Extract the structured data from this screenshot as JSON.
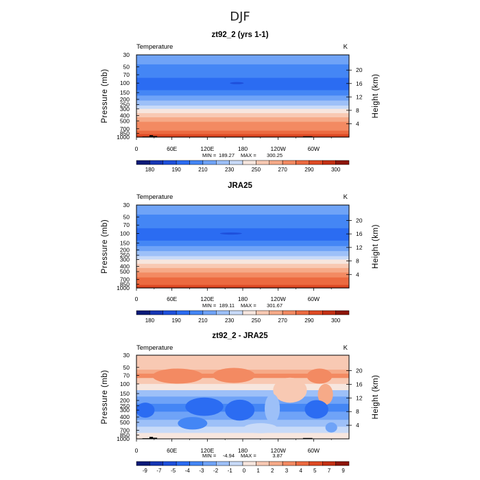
{
  "figure_title": "DJF",
  "colors": {
    "temperature_scale": [
      "#0a1a78",
      "#1636b4",
      "#1e50dc",
      "#2b6cf2",
      "#4486f5",
      "#6fa3f7",
      "#9dc0f8",
      "#c8daf8",
      "#f7e6de",
      "#f8c9b3",
      "#f6aa88",
      "#f38a62",
      "#ec6a40",
      "#de4a24",
      "#c43014",
      "#8e1608"
    ],
    "difference_scale": [
      "#0a1a78",
      "#1636b4",
      "#1e50dc",
      "#2b6cf2",
      "#4486f5",
      "#6fa3f7",
      "#9dc0f8",
      "#c8daf8",
      "#f7e6de",
      "#f8c9b3",
      "#f6aa88",
      "#f38a62",
      "#ec6a40",
      "#de4a24",
      "#c43014",
      "#8e1608"
    ],
    "topography": "#000000"
  },
  "chart_data": [
    {
      "type": "heatmap",
      "title": "zt92_2 (yrs 1-1)",
      "variable_label": "Temperature",
      "units_label": "K",
      "xlabel": "",
      "ylabel": "Pressure (mb)",
      "ylabel_right": "Height (km)",
      "x_ticks": [
        "0",
        "60E",
        "120E",
        "180",
        "120W",
        "60W"
      ],
      "y_ticks": [
        "30",
        "50",
        "70",
        "100",
        "150",
        "200",
        "250",
        "300",
        "400",
        "500",
        "700",
        "850",
        "1000"
      ],
      "y_ticks_right": [
        "20",
        "16",
        "12",
        "8",
        "4"
      ],
      "min_label": "MIN =",
      "min_value": "189.27",
      "max_label": "MAX =",
      "max_value": "300.25",
      "colorbar_labels": [
        "180",
        "190",
        "210",
        "230",
        "250",
        "270",
        "290",
        "300"
      ],
      "bands": [
        {
          "p_top": 30,
          "p_bot": 45,
          "value": 212
        },
        {
          "p_top": 45,
          "p_bot": 62,
          "value": 207
        },
        {
          "p_top": 62,
          "p_bot": 80,
          "value": 203
        },
        {
          "p_top": 80,
          "p_bot": 135,
          "value": 199
        },
        {
          "p_top": 135,
          "p_bot": 170,
          "value": 207
        },
        {
          "p_top": 170,
          "p_bot": 210,
          "value": 214
        },
        {
          "p_top": 210,
          "p_bot": 260,
          "value": 222
        },
        {
          "p_top": 260,
          "p_bot": 300,
          "value": 232
        },
        {
          "p_top": 300,
          "p_bot": 360,
          "value": 242
        },
        {
          "p_top": 360,
          "p_bot": 430,
          "value": 252
        },
        {
          "p_top": 430,
          "p_bot": 520,
          "value": 262
        },
        {
          "p_top": 520,
          "p_bot": 640,
          "value": 271
        },
        {
          "p_top": 640,
          "p_bot": 760,
          "value": 279
        },
        {
          "p_top": 760,
          "p_bot": 880,
          "value": 286
        },
        {
          "p_top": 880,
          "p_bot": 960,
          "value": 292
        },
        {
          "p_top": 960,
          "p_bot": 1000,
          "value": 298
        }
      ],
      "topography": [
        {
          "lon_start": 10,
          "lon_end": 30,
          "p_top": 975
        },
        {
          "lon_start": 22,
          "lon_end": 28,
          "p_top": 920
        },
        {
          "lon_start": 28,
          "lon_end": 35,
          "p_top": 955
        },
        {
          "lon_start": 282,
          "lon_end": 298,
          "p_top": 965
        }
      ]
    },
    {
      "type": "heatmap",
      "title": "JRA25",
      "variable_label": "Temperature",
      "units_label": "K",
      "xlabel": "",
      "ylabel": "Pressure (mb)",
      "ylabel_right": "Height (km)",
      "x_ticks": [
        "0",
        "60E",
        "120E",
        "180",
        "120W",
        "60W"
      ],
      "y_ticks": [
        "30",
        "50",
        "70",
        "100",
        "150",
        "200",
        "250",
        "300",
        "400",
        "500",
        "700",
        "850",
        "1000"
      ],
      "y_ticks_right": [
        "20",
        "16",
        "12",
        "8",
        "4"
      ],
      "min_label": "MIN =",
      "min_value": "189.11",
      "max_label": "MAX =",
      "max_value": "301.67",
      "colorbar_labels": [
        "180",
        "190",
        "210",
        "230",
        "250",
        "270",
        "290",
        "300"
      ],
      "bands": [
        {
          "p_top": 30,
          "p_bot": 45,
          "value": 213
        },
        {
          "p_top": 45,
          "p_bot": 62,
          "value": 207
        },
        {
          "p_top": 62,
          "p_bot": 80,
          "value": 203
        },
        {
          "p_top": 80,
          "p_bot": 135,
          "value": 199
        },
        {
          "p_top": 135,
          "p_bot": 170,
          "value": 207
        },
        {
          "p_top": 170,
          "p_bot": 210,
          "value": 214
        },
        {
          "p_top": 210,
          "p_bot": 260,
          "value": 224
        },
        {
          "p_top": 260,
          "p_bot": 300,
          "value": 235
        },
        {
          "p_top": 300,
          "p_bot": 360,
          "value": 245
        },
        {
          "p_top": 360,
          "p_bot": 430,
          "value": 254
        },
        {
          "p_top": 430,
          "p_bot": 520,
          "value": 263
        },
        {
          "p_top": 520,
          "p_bot": 640,
          "value": 272
        },
        {
          "p_top": 640,
          "p_bot": 760,
          "value": 280
        },
        {
          "p_top": 760,
          "p_bot": 880,
          "value": 287
        },
        {
          "p_top": 880,
          "p_bot": 960,
          "value": 293
        },
        {
          "p_top": 960,
          "p_bot": 1000,
          "value": 299
        }
      ],
      "topography": []
    },
    {
      "type": "heatmap",
      "title": "zt92_2 - JRA25",
      "variable_label": "Temperature",
      "units_label": "K",
      "xlabel": "",
      "ylabel": "Pressure (mb)",
      "ylabel_right": "Height (km)",
      "x_ticks": [
        "0",
        "60E",
        "120E",
        "180",
        "120W",
        "60W"
      ],
      "y_ticks": [
        "30",
        "50",
        "70",
        "100",
        "150",
        "200",
        "250",
        "300",
        "400",
        "500",
        "700",
        "850",
        "1000"
      ],
      "y_ticks_right": [
        "20",
        "16",
        "12",
        "8",
        "4"
      ],
      "min_label": "MIN =",
      "min_value": "-4.94",
      "max_label": "MAX =",
      "max_value": "3.87",
      "colorbar_labels": [
        "-9",
        "-7",
        "-5",
        "-4",
        "-3",
        "-2",
        "-1",
        "0",
        "1",
        "2",
        "3",
        "4",
        "5",
        "7",
        "9"
      ],
      "bands": [
        {
          "p_top": 30,
          "p_bot": 55,
          "value": 1.6
        },
        {
          "p_top": 55,
          "p_bot": 65,
          "value": 2.2
        },
        {
          "p_top": 65,
          "p_bot": 78,
          "value": 3.3
        },
        {
          "p_top": 78,
          "p_bot": 100,
          "value": 1.5
        },
        {
          "p_top": 100,
          "p_bot": 130,
          "value": 0.5
        },
        {
          "p_top": 130,
          "p_bot": 170,
          "value": -1.4
        },
        {
          "p_top": 170,
          "p_bot": 230,
          "value": -2.5
        },
        {
          "p_top": 230,
          "p_bot": 320,
          "value": -3.2
        },
        {
          "p_top": 320,
          "p_bot": 450,
          "value": -2.4
        },
        {
          "p_top": 450,
          "p_bot": 600,
          "value": -1.5
        },
        {
          "p_top": 600,
          "p_bot": 780,
          "value": -0.6
        },
        {
          "p_top": 780,
          "p_bot": 1000,
          "value": 0.4
        }
      ],
      "anomalies": [
        {
          "lon": 70,
          "p": 72,
          "value": 3.6,
          "lon_w": 60,
          "p_span": 0.18
        },
        {
          "lon": 165,
          "p": 70,
          "value": 3.6,
          "lon_w": 50,
          "p_span": 0.18
        },
        {
          "lon": 310,
          "p": 72,
          "value": 3.6,
          "lon_w": 30,
          "p_span": 0.18
        },
        {
          "lon": 260,
          "p": 130,
          "value": 1.5,
          "lon_w": 40,
          "p_span": 0.3
        },
        {
          "lon": 320,
          "p": 155,
          "value": 2.5,
          "lon_w": 18,
          "p_span": 0.25
        },
        {
          "lon": 115,
          "p": 260,
          "value": -4.3,
          "lon_w": 45,
          "p_span": 0.22
        },
        {
          "lon": 175,
          "p": 300,
          "value": -4.5,
          "lon_w": 35,
          "p_span": 0.25
        },
        {
          "lon": 305,
          "p": 290,
          "value": -4.3,
          "lon_w": 28,
          "p_span": 0.22
        },
        {
          "lon": 15,
          "p": 300,
          "value": -4.1,
          "lon_w": 22,
          "p_span": 0.18
        },
        {
          "lon": 230,
          "p": 280,
          "value": -1.5,
          "lon_w": 18,
          "p_span": 0.35
        },
        {
          "lon": 95,
          "p": 520,
          "value": -3.5,
          "lon_w": 35,
          "p_span": 0.15
        },
        {
          "lon": 210,
          "p": 640,
          "value": -0.5,
          "lon_w": 40,
          "p_span": 0.12
        },
        {
          "lon": 330,
          "p": 620,
          "value": -2.5,
          "lon_w": 14,
          "p_span": 0.12
        }
      ],
      "topography": [
        {
          "lon_start": 10,
          "lon_end": 30,
          "p_top": 975
        },
        {
          "lon_start": 22,
          "lon_end": 28,
          "p_top": 920
        },
        {
          "lon_start": 28,
          "lon_end": 35,
          "p_top": 955
        },
        {
          "lon_start": 282,
          "lon_end": 298,
          "p_top": 965
        }
      ]
    }
  ]
}
